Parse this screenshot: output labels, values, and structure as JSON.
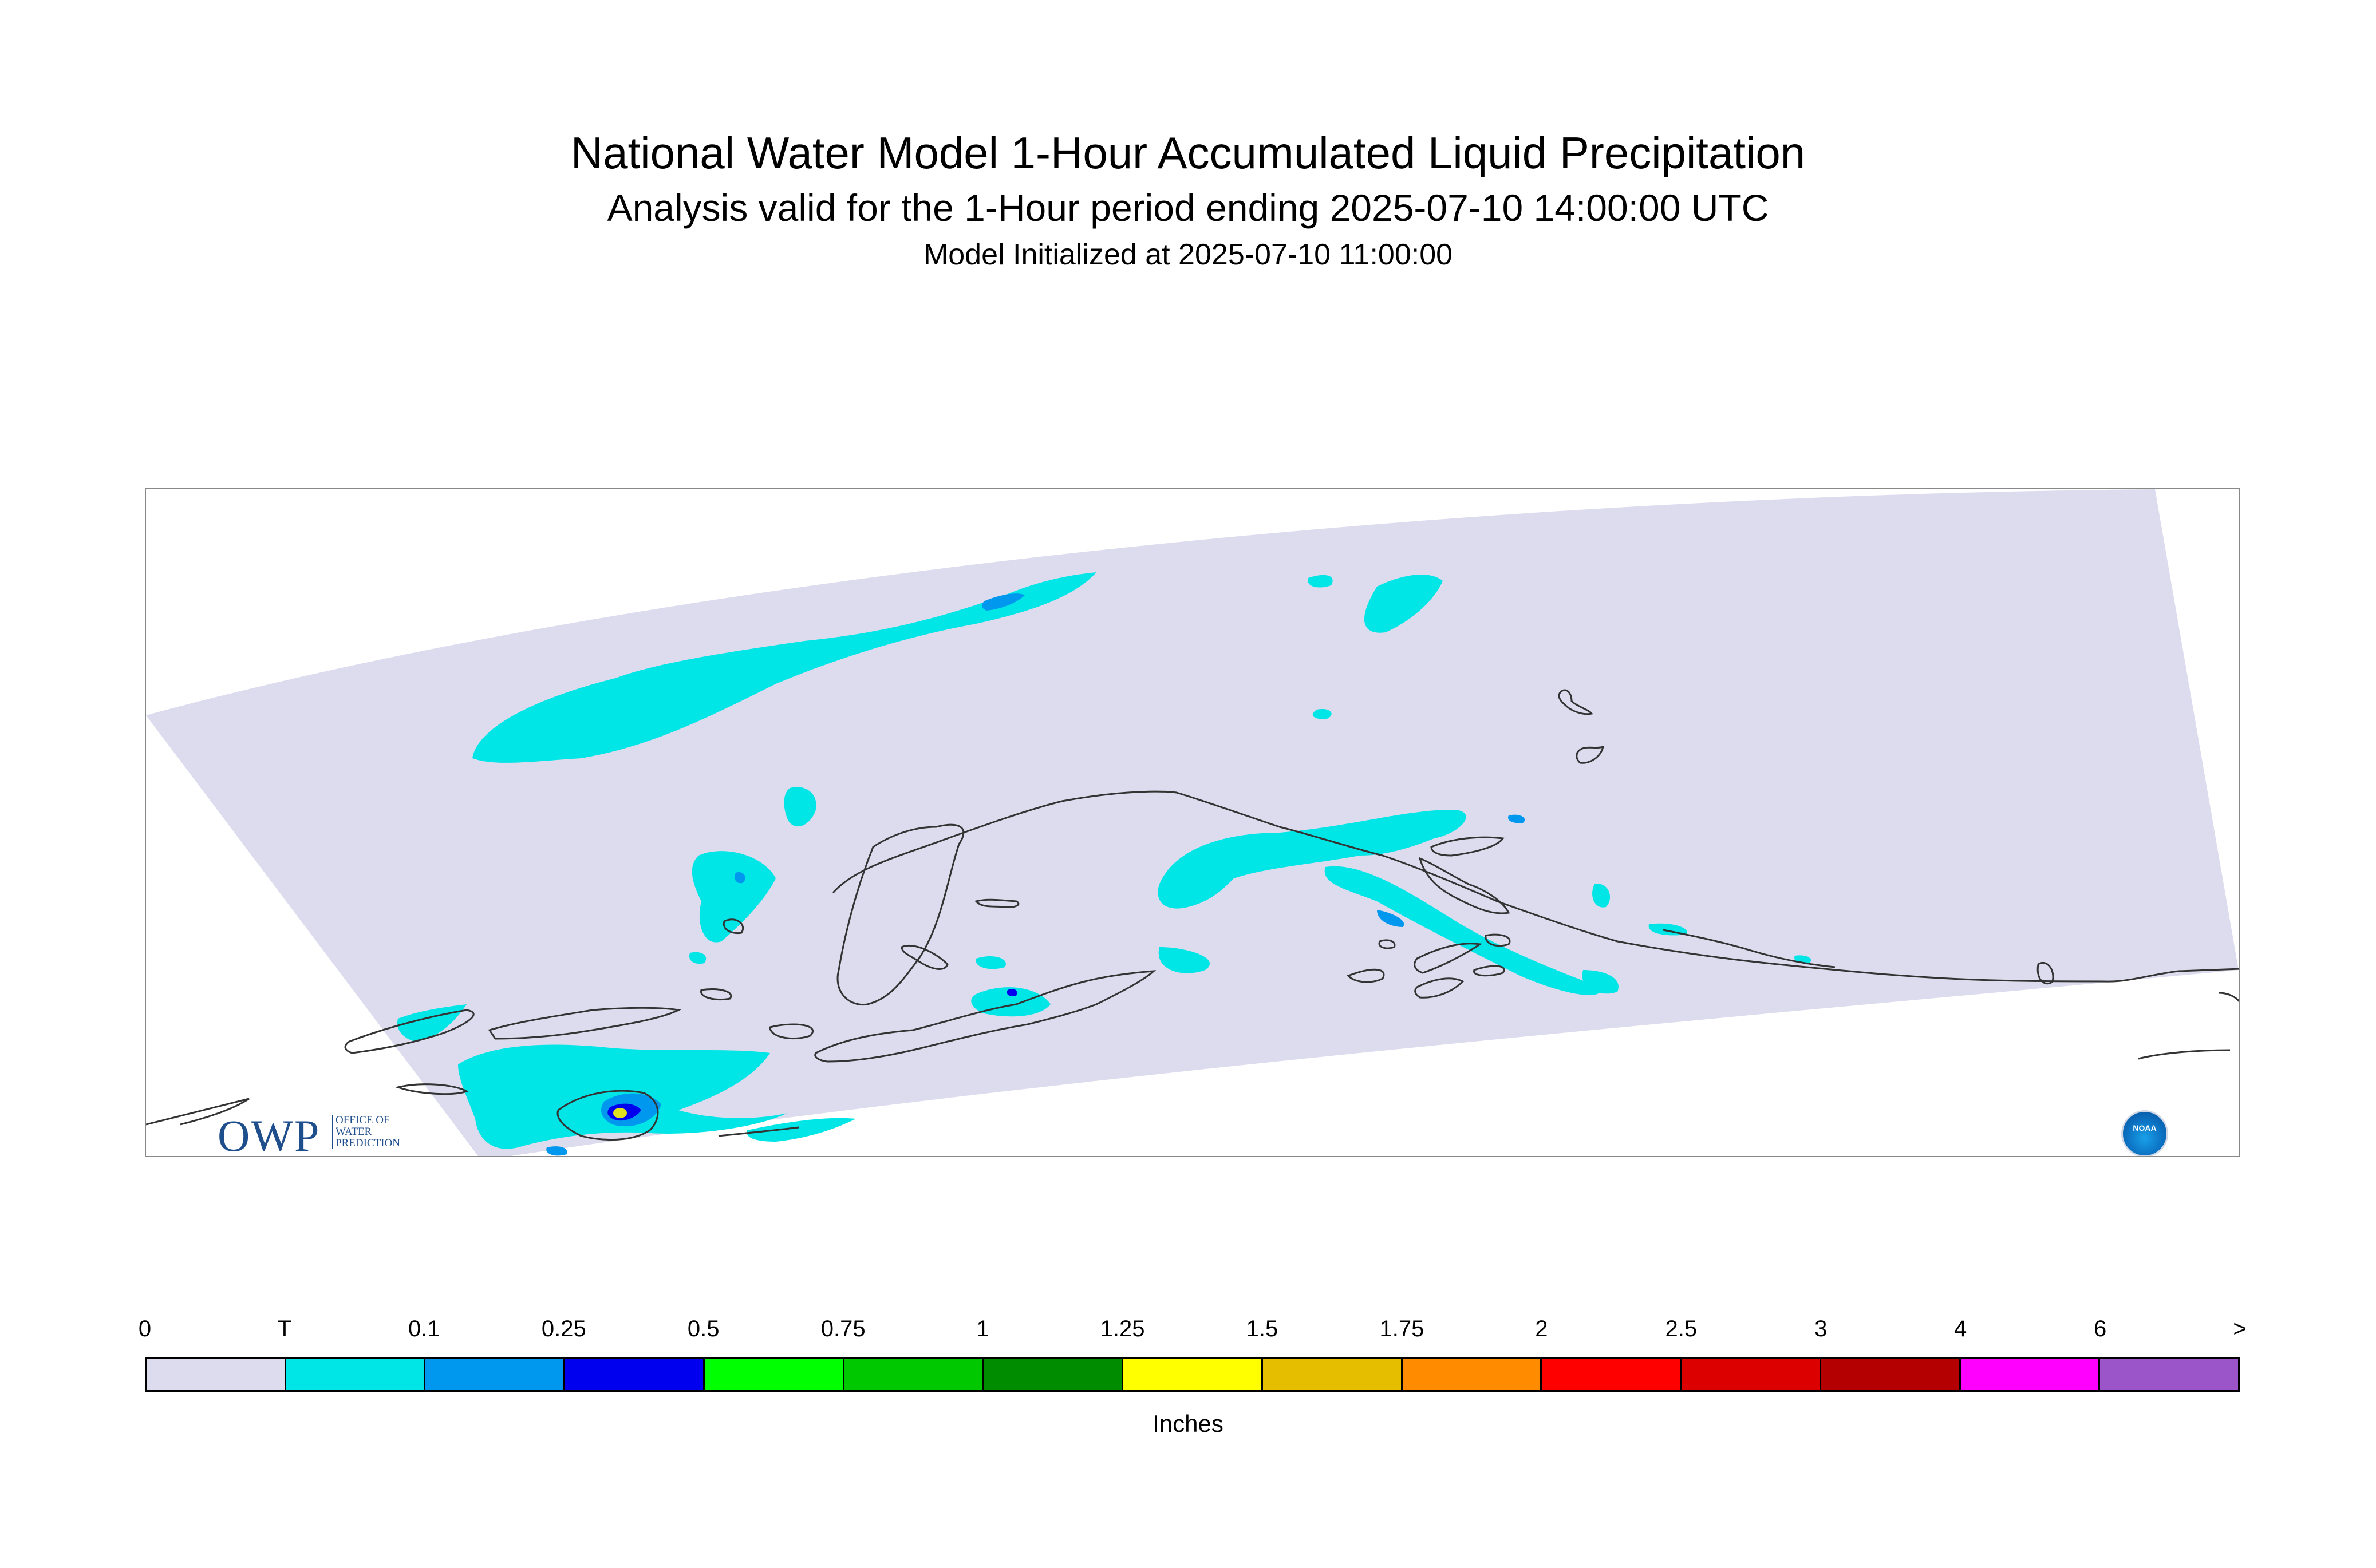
{
  "header": {
    "title": "National Water Model 1-Hour Accumulated Liquid Precipitation",
    "subtitle": "Analysis valid for the 1-Hour period ending 2025-07-10 14:00:00 UTC",
    "initialized": "Model Initialized at 2025-07-10 11:00:00"
  },
  "logos": {
    "owp_text": "OWP",
    "owp_subtext": "OFFICE OF WATER PREDICTION",
    "noaa_text": "NOAA"
  },
  "colors": {
    "domain_fill": "#dcdcee",
    "trace": "#00e5e5",
    "light_blue": "#0098ee",
    "dark_blue": "#0000ee",
    "coastline": "#333333"
  },
  "legend": {
    "units": "Inches",
    "ticks": [
      "0",
      "T",
      "0.1",
      "0.25",
      "0.5",
      "0.75",
      "1",
      "1.25",
      "1.5",
      "1.75",
      "2",
      "2.5",
      "3",
      "4",
      "6",
      ">"
    ],
    "colors": [
      "#dcdcee",
      "#00e5e5",
      "#0098ee",
      "#0000ee",
      "#00ff00",
      "#00c800",
      "#008c00",
      "#ffff00",
      "#e6be00",
      "#ff8c00",
      "#ff0000",
      "#dc0000",
      "#b40000",
      "#ff00ff",
      "#9b55c8"
    ]
  }
}
